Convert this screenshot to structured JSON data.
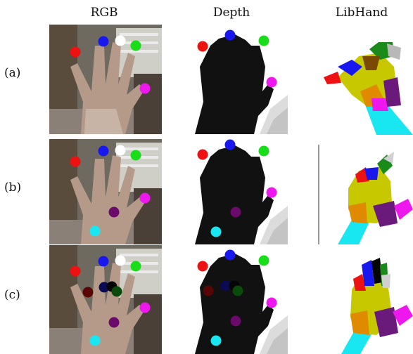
{
  "headers": {
    "rgb": "RGB",
    "depth": "Depth",
    "libhand": "LibHand"
  },
  "rows": [
    {
      "label": "(a)"
    },
    {
      "label": "(b)"
    },
    {
      "label": "(c)"
    }
  ],
  "keypoint_colors": {
    "red": "#ee1111",
    "blue": "#1818ee",
    "white": "#ffffff",
    "green": "#18dd18",
    "magenta": "#ee18ee",
    "purple": "#6a0a6a",
    "cyan": "#18e6f0",
    "darkred": "#5a0505",
    "navy": "#0a0a55",
    "black": "#050505",
    "darkgreen": "#0a4a0a"
  }
}
